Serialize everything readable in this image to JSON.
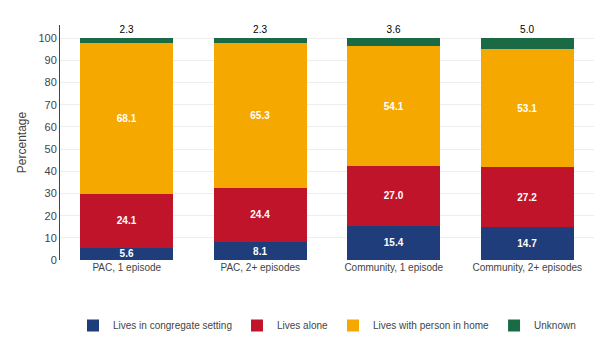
{
  "chart_data": {
    "type": "bar",
    "stacked": true,
    "categories": [
      "PAC, 1 episode",
      "PAC, 2+ episodes",
      "Community, 1 episode",
      "Community, 2+ episodes"
    ],
    "series": [
      {
        "name": "Lives in congregate setting",
        "color": "#1F3D7A",
        "values": [
          5.6,
          8.1,
          15.4,
          14.7
        ],
        "value_labels": [
          "5.6",
          "8.1",
          "15.4",
          "14.7"
        ]
      },
      {
        "name": "Lives alone",
        "color": "#C0142A",
        "values": [
          24.1,
          24.4,
          27.0,
          27.2
        ],
        "value_labels": [
          "24.1",
          "24.4",
          "27.0",
          "27.2"
        ]
      },
      {
        "name": "Lives with person in home",
        "color": "#F5A800",
        "values": [
          68.1,
          65.3,
          54.1,
          53.1
        ],
        "value_labels": [
          "68.1",
          "65.3",
          "54.1",
          "53.1"
        ]
      },
      {
        "name": "Unknown",
        "color": "#1A6B45",
        "values": [
          2.3,
          2.3,
          3.6,
          5.0
        ],
        "value_labels": [
          "2.3",
          "2.3",
          "3.6",
          "5.0"
        ]
      }
    ],
    "ylabel": "Percentage",
    "ylim": [
      0,
      106
    ],
    "yticks": [
      0,
      10,
      20,
      30,
      40,
      50,
      60,
      70,
      80,
      90,
      100
    ],
    "grid": true,
    "data_labels": true,
    "legend": "bottom"
  }
}
